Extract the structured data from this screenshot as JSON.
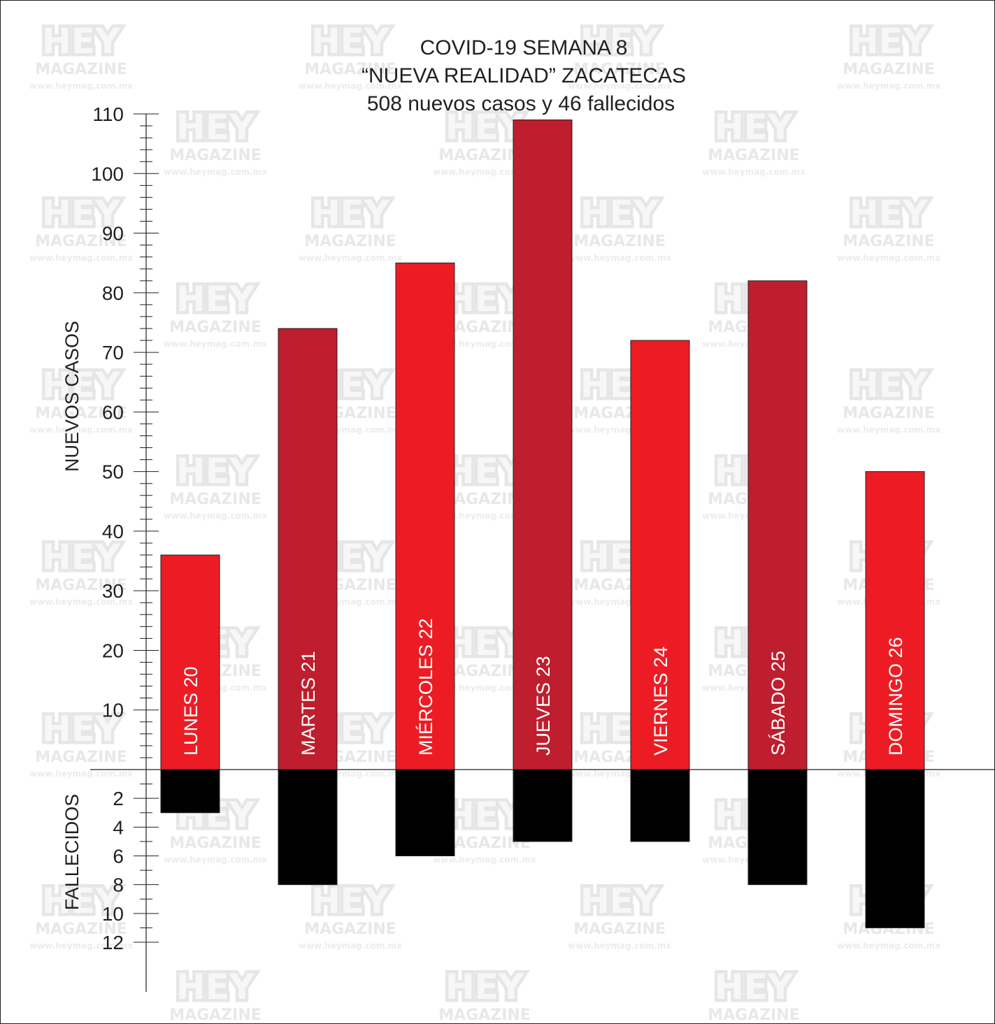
{
  "chart_data": {
    "type": "bar",
    "title_lines": [
      "COVID-19    SEMANA 8",
      "“NUEVA REALIDAD”    ZACATECAS",
      "508 nuevos casos y 46 fallecidos"
    ],
    "categories": [
      "LUNES 20",
      "MARTES 21",
      "MIÉRCOLES 22",
      "JUEVES 23",
      "VIERNES 24",
      "SÁBADO 25",
      "DOMINGO 26"
    ],
    "series": [
      {
        "name": "NUEVOS CASOS",
        "values": [
          36,
          74,
          85,
          109,
          72,
          82,
          50
        ]
      },
      {
        "name": "FALLECIDOS",
        "values": [
          3,
          8,
          6,
          5,
          5,
          8,
          11
        ]
      }
    ],
    "upper_axis": {
      "label": "NUEVOS CASOS",
      "ylim": [
        0,
        110
      ],
      "ticks": [
        10,
        20,
        30,
        40,
        50,
        60,
        70,
        80,
        90,
        100,
        110
      ]
    },
    "lower_axis": {
      "label": "FALLECIDOS",
      "ylim": [
        0,
        12
      ],
      "ticks": [
        2,
        4,
        6,
        8,
        10,
        12
      ]
    },
    "bar_colors": [
      "#ed1c24",
      "#be1e2d",
      "#ed1c24",
      "#be1e2d",
      "#ed1c24",
      "#be1e2d",
      "#ed1c24"
    ],
    "lower_bar_color": "#000000",
    "grid": false,
    "legend": "none"
  },
  "watermark": {
    "logo": "HEY",
    "subtitle": "MAGAZINE",
    "url": "www.heymag.com.mx"
  }
}
